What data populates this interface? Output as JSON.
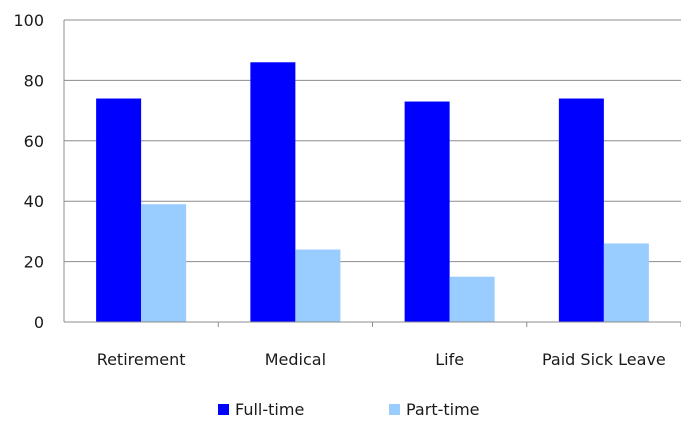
{
  "chart_data": {
    "type": "bar",
    "title": "",
    "xlabel": "",
    "ylabel": "",
    "categories": [
      "Retirement",
      "Medical",
      "Life",
      "Paid Sick Leave"
    ],
    "series": [
      {
        "name": "Full-time",
        "values": [
          74,
          86,
          73,
          74
        ],
        "color": "#0000ff"
      },
      {
        "name": "Part-time",
        "values": [
          39,
          24,
          15,
          26
        ],
        "color": "#99ccff"
      }
    ],
    "ylim": [
      0,
      100
    ],
    "yticks": [
      "0",
      "20",
      "40",
      "60",
      "80",
      "100"
    ],
    "grid": true,
    "legend_position": "bottom"
  }
}
